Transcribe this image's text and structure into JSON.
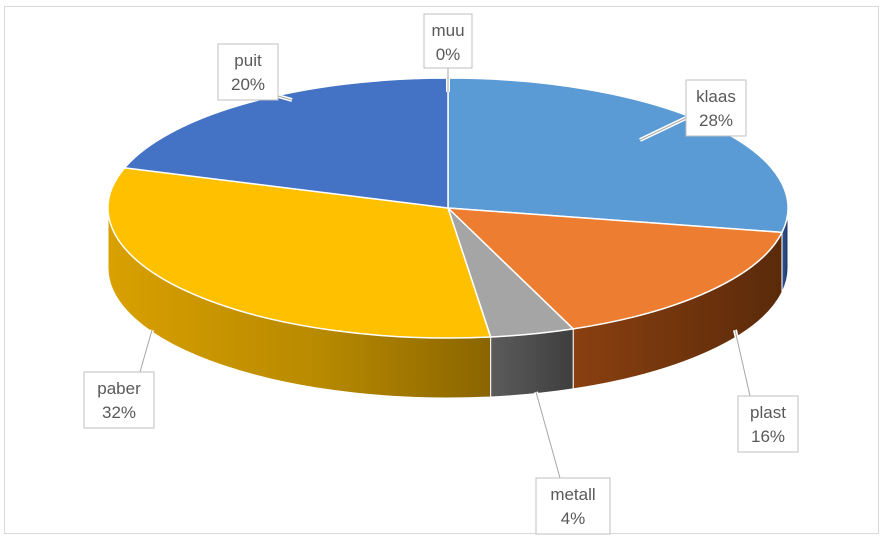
{
  "chart_data": {
    "type": "pie",
    "title": "",
    "style": "3d",
    "slices": [
      {
        "label": "muu",
        "value": 0,
        "display": "0%",
        "color": "#a5a5a5"
      },
      {
        "label": "klaas",
        "value": 28,
        "display": "28%",
        "color": "#5b9bd5"
      },
      {
        "label": "plast",
        "value": 16,
        "display": "16%",
        "color": "#ed7d31"
      },
      {
        "label": "metall",
        "value": 4,
        "display": "4%",
        "color": "#a5a5a5"
      },
      {
        "label": "paber",
        "value": 32,
        "display": "32%",
        "color": "#ffc000"
      },
      {
        "label": "puit",
        "value": 20,
        "display": "20%",
        "color": "#4472c4"
      }
    ]
  }
}
